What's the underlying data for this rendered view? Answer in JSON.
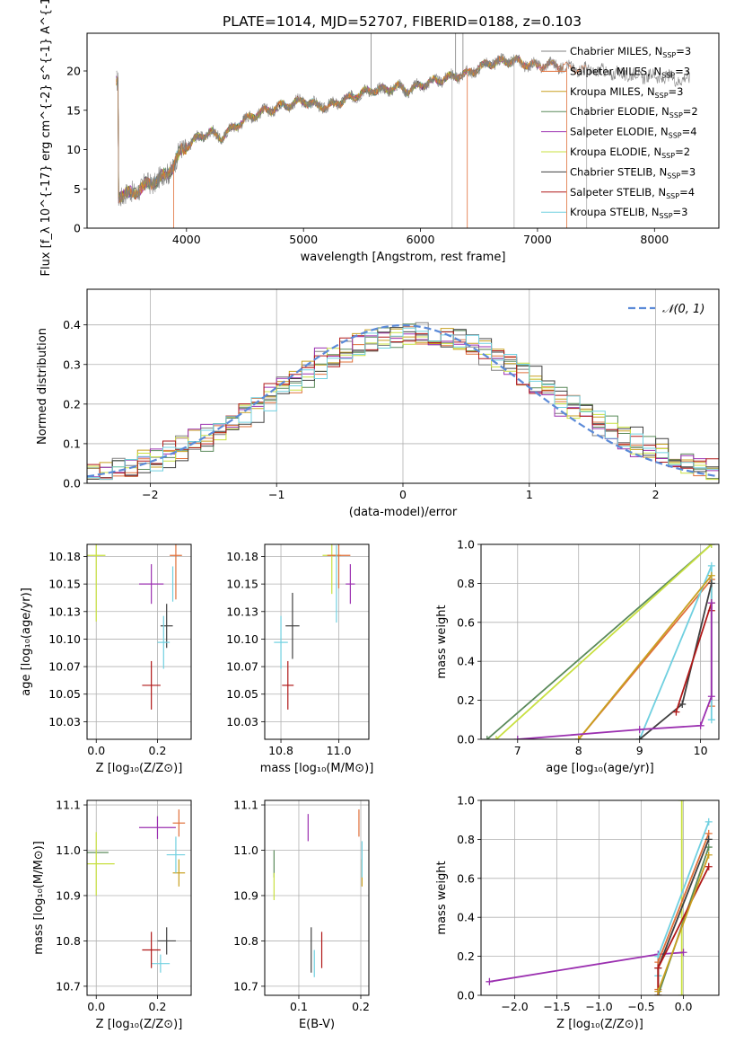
{
  "title": "PLATE=1014, MJD=52707, FIBERID=0188, z=0.103",
  "series_styles": [
    {
      "name": "Chabrier MILES",
      "nssp": "3",
      "color": "#808080"
    },
    {
      "name": "Salpeter MILES",
      "nssp": "3",
      "color": "#e0703a"
    },
    {
      "name": "Kroupa MILES",
      "nssp": "3",
      "color": "#c8a020"
    },
    {
      "name": "Chabrier ELODIE",
      "nssp": "2",
      "color": "#5a8a5a"
    },
    {
      "name": "Salpeter ELODIE",
      "nssp": "4",
      "color": "#9b30b0"
    },
    {
      "name": "Kroupa ELODIE",
      "nssp": "2",
      "color": "#c8e040"
    },
    {
      "name": "Chabrier STELIB",
      "nssp": "3",
      "color": "#404040"
    },
    {
      "name": "Salpeter STELIB",
      "nssp": "4",
      "color": "#b01818"
    },
    {
      "name": "Kroupa STELIB",
      "nssp": "3",
      "color": "#70d0e0"
    }
  ],
  "chart_data": [
    {
      "id": "spectrum",
      "type": "line",
      "xlabel": "wavelength [Angstrom, rest frame]",
      "ylabel": "Flux [f_λ 10^{-17} erg cm^{-2} s^{-1} A^{-1}]",
      "xlim": [
        3150,
        8550
      ],
      "ylim": [
        0,
        24.8
      ],
      "xticks": [
        4000,
        5000,
        6000,
        7000,
        8000
      ],
      "yticks": [
        0,
        5,
        10,
        15,
        20
      ],
      "legend": "upper right",
      "grid": false,
      "data_x_range": [
        3400,
        8300
      ],
      "continuum": [
        [
          3420,
          4.2
        ],
        [
          3500,
          4.3
        ],
        [
          3600,
          5.0
        ],
        [
          3700,
          5.8
        ],
        [
          3800,
          6.5
        ],
        [
          3850,
          7.2
        ],
        [
          3900,
          8.3
        ],
        [
          3950,
          9.8
        ],
        [
          4000,
          10.5
        ],
        [
          4100,
          11.5
        ],
        [
          4200,
          12.2
        ],
        [
          4300,
          11.5
        ],
        [
          4400,
          12.8
        ],
        [
          4500,
          13.8
        ],
        [
          4600,
          14.5
        ],
        [
          4700,
          15.0
        ],
        [
          4800,
          15.5
        ],
        [
          4900,
          15.8
        ],
        [
          5000,
          16.2
        ],
        [
          5100,
          15.7
        ],
        [
          5200,
          15.4
        ],
        [
          5300,
          16.0
        ],
        [
          5400,
          16.6
        ],
        [
          5500,
          17.2
        ],
        [
          5600,
          17.6
        ],
        [
          5700,
          17.6
        ],
        [
          5800,
          18.0
        ],
        [
          5900,
          17.5
        ],
        [
          6000,
          18.2
        ],
        [
          6100,
          18.6
        ],
        [
          6200,
          19.0
        ],
        [
          6300,
          19.4
        ],
        [
          6400,
          19.6
        ],
        [
          6500,
          20.4
        ],
        [
          6600,
          21.0
        ],
        [
          6700,
          21.2
        ],
        [
          6800,
          21.3
        ],
        [
          6900,
          20.9
        ],
        [
          7000,
          20.6
        ],
        [
          7100,
          20.9
        ],
        [
          7200,
          20.6
        ],
        [
          7300,
          20.4
        ],
        [
          7400,
          20.2
        ],
        [
          7500,
          20.0
        ],
        [
          7600,
          19.8
        ],
        [
          7700,
          19.6
        ],
        [
          7800,
          19.5
        ],
        [
          7900,
          19.4
        ],
        [
          8000,
          19.3
        ],
        [
          8100,
          19.1
        ],
        [
          8200,
          19.0
        ],
        [
          8300,
          18.9
        ]
      ],
      "spikes_up": [
        5577,
        6300,
        6363
      ],
      "spikes_down": [
        3890,
        6270,
        6400,
        6800,
        7250,
        7420
      ],
      "series_xmax": [
        8300,
        7420,
        7220,
        6800,
        7200,
        7000,
        6800,
        7200,
        7000
      ]
    },
    {
      "id": "residuals",
      "type": "step",
      "xlabel": "(data-model)/error",
      "ylabel": "Normed distribution",
      "xlim": [
        -2.5,
        2.5
      ],
      "ylim": [
        0,
        0.49
      ],
      "xticks": [
        -2,
        -1,
        0,
        1,
        2
      ],
      "yticks": [
        0.0,
        0.1,
        0.2,
        0.3,
        0.4
      ],
      "grid": true,
      "legend_label": "𝒩(0, 1)",
      "legend_color": "#5b8ad8",
      "bins": 50,
      "offsets": [
        0.05,
        0.12,
        0.08,
        0.15,
        0.02,
        0.1,
        0.18,
        0.06,
        0.13
      ]
    },
    {
      "id": "age-vs-Z",
      "type": "scatter",
      "xlabel": "Z [log₁₀(Z/Z⊙)]",
      "ylabel": "age  [log₁₀(age/yr)]",
      "xlim": [
        -0.03,
        0.31
      ],
      "ylim": [
        10.009,
        10.186
      ],
      "xticks": [
        0.0,
        0.2
      ],
      "yticks": [
        10.025,
        10.05,
        10.075,
        10.1,
        10.125,
        10.15,
        10.175
      ],
      "points": [
        {
          "x": 0.0,
          "y": 10.176,
          "xerr": 0.03,
          "yerr": 0.0,
          "c": 5
        },
        {
          "x": 0.0,
          "y": 10.176,
          "xerr": 0.0,
          "yerr": 0.06,
          "c": 5
        },
        {
          "x": 0.18,
          "y": 10.15,
          "xerr": 0.04,
          "yerr": 0.018,
          "c": 4
        },
        {
          "x": 0.26,
          "y": 10.176,
          "xerr": 0.02,
          "yerr": 0.04,
          "c": 1
        },
        {
          "x": 0.25,
          "y": 10.15,
          "xerr": 0.0,
          "yerr": 0.016,
          "c": 8
        },
        {
          "x": 0.23,
          "y": 10.112,
          "xerr": 0.02,
          "yerr": 0.02,
          "c": 6
        },
        {
          "x": 0.22,
          "y": 10.097,
          "xerr": 0.02,
          "yerr": 0.024,
          "c": 8
        },
        {
          "x": 0.18,
          "y": 10.058,
          "xerr": 0.03,
          "yerr": 0.022,
          "c": 7
        }
      ]
    },
    {
      "id": "age-vs-mass",
      "type": "scatter",
      "xlabel": "mass [log₁₀(M/M⊙)]",
      "ylabel": "",
      "xlim": [
        10.68,
        11.13
      ],
      "ylim": [
        10.009,
        10.186
      ],
      "xticks": [
        10.75,
        11.0
      ],
      "yticks": [
        10.025,
        10.05,
        10.075,
        10.1,
        10.125,
        10.15,
        10.175
      ],
      "points": [
        {
          "x": 10.97,
          "y": 10.176,
          "xerr": 0.04,
          "yerr": 0.035,
          "c": 5
        },
        {
          "x": 11.05,
          "y": 10.15,
          "xerr": 0.02,
          "yerr": 0.018,
          "c": 4
        },
        {
          "x": 11.0,
          "y": 10.176,
          "xerr": 0.05,
          "yerr": 0.03,
          "c": 1
        },
        {
          "x": 10.99,
          "y": 10.15,
          "xerr": 0.0,
          "yerr": 0.035,
          "c": 8
        },
        {
          "x": 10.8,
          "y": 10.112,
          "xerr": 0.03,
          "yerr": 0.03,
          "c": 6
        },
        {
          "x": 10.75,
          "y": 10.097,
          "xerr": 0.03,
          "yerr": 0.024,
          "c": 8
        },
        {
          "x": 10.78,
          "y": 10.058,
          "xerr": 0.025,
          "yerr": 0.022,
          "c": 7
        }
      ]
    },
    {
      "id": "massweight-vs-age",
      "type": "line",
      "xlabel": "age  [log₁₀(age/yr)]",
      "ylabel": "mass weight",
      "xlim": [
        6.4,
        10.3
      ],
      "ylim": [
        0.0,
        1.0
      ],
      "xticks": [
        7,
        8,
        9,
        10
      ],
      "yticks": [
        0.0,
        0.2,
        0.4,
        0.6,
        0.8,
        1.0
      ],
      "grid": true,
      "lines": [
        {
          "c": 3,
          "pts": [
            [
              6.5,
              0.0
            ],
            [
              10.18,
              1.0
            ]
          ]
        },
        {
          "c": 5,
          "pts": [
            [
              6.65,
              0.0
            ],
            [
              10.18,
              1.0
            ]
          ]
        },
        {
          "c": 1,
          "pts": [
            [
              8.0,
              0.0
            ],
            [
              10.18,
              0.82
            ],
            [
              10.18,
              0.17
            ]
          ]
        },
        {
          "c": 8,
          "pts": [
            [
              9.0,
              0.0
            ],
            [
              10.18,
              0.89
            ],
            [
              10.18,
              0.1
            ]
          ]
        },
        {
          "c": 2,
          "pts": [
            [
              8.0,
              0.0
            ],
            [
              10.18,
              0.84
            ]
          ]
        },
        {
          "c": 6,
          "pts": [
            [
              9.0,
              0.0
            ],
            [
              9.7,
              0.18
            ],
            [
              10.18,
              0.8
            ]
          ]
        },
        {
          "c": 7,
          "pts": [
            [
              9.6,
              0.14
            ],
            [
              10.18,
              0.7
            ],
            [
              10.18,
              0.66
            ]
          ]
        },
        {
          "c": 4,
          "pts": [
            [
              7.0,
              0.0
            ],
            [
              9.0,
              0.05
            ],
            [
              10.0,
              0.07
            ],
            [
              10.18,
              0.22
            ],
            [
              10.18,
              0.7
            ]
          ]
        }
      ]
    },
    {
      "id": "mass-vs-Z",
      "type": "scatter",
      "xlabel": "Z [log₁₀(Z/Z⊙)]",
      "ylabel": "mass [log₁₀(M/M⊙)]",
      "xlim": [
        -0.03,
        0.31
      ],
      "ylim": [
        10.68,
        11.11
      ],
      "xticks": [
        0.0,
        0.2
      ],
      "yticks": [
        10.7,
        10.8,
        10.9,
        11.0,
        11.1
      ],
      "points": [
        {
          "x": 0.0,
          "y": 10.995,
          "xerr": 0.04,
          "yerr": 0.0,
          "c": 3
        },
        {
          "x": 0.0,
          "y": 10.97,
          "xerr": 0.06,
          "yerr": 0.07,
          "c": 5
        },
        {
          "x": 0.2,
          "y": 11.05,
          "xerr": 0.06,
          "yerr": 0.025,
          "c": 4
        },
        {
          "x": 0.27,
          "y": 11.06,
          "xerr": 0.02,
          "yerr": 0.03,
          "c": 1
        },
        {
          "x": 0.27,
          "y": 10.95,
          "xerr": 0.02,
          "yerr": 0.03,
          "c": 2
        },
        {
          "x": 0.26,
          "y": 10.99,
          "xerr": 0.03,
          "yerr": 0.04,
          "c": 8
        },
        {
          "x": 0.23,
          "y": 10.8,
          "xerr": 0.03,
          "yerr": 0.03,
          "c": 6
        },
        {
          "x": 0.21,
          "y": 10.75,
          "xerr": 0.03,
          "yerr": 0.02,
          "c": 8
        },
        {
          "x": 0.18,
          "y": 10.78,
          "xerr": 0.03,
          "yerr": 0.04,
          "c": 7
        }
      ]
    },
    {
      "id": "mass-vs-ebv",
      "type": "scatter",
      "xlabel": "E(B-V)",
      "ylabel": "",
      "xlim": [
        0.045,
        0.213
      ],
      "ylim": [
        10.68,
        11.11
      ],
      "xticks": [
        0.1,
        0.2
      ],
      "yticks": [
        10.7,
        10.8,
        10.9,
        11.0,
        11.1
      ],
      "points": [
        {
          "x": 0.06,
          "y": 10.97,
          "xerr": 0.0,
          "yerr": 0.03,
          "c": 3
        },
        {
          "x": 0.06,
          "y": 10.92,
          "xerr": 0.0,
          "yerr": 0.03,
          "c": 5
        },
        {
          "x": 0.115,
          "y": 11.05,
          "xerr": 0.0,
          "yerr": 0.03,
          "c": 4
        },
        {
          "x": 0.197,
          "y": 11.06,
          "xerr": 0.0,
          "yerr": 0.03,
          "c": 1
        },
        {
          "x": 0.202,
          "y": 10.95,
          "xerr": 0.0,
          "yerr": 0.03,
          "c": 2
        },
        {
          "x": 0.202,
          "y": 10.98,
          "xerr": 0.0,
          "yerr": 0.04,
          "c": 8
        },
        {
          "x": 0.12,
          "y": 10.78,
          "xerr": 0.0,
          "yerr": 0.05,
          "c": 6
        },
        {
          "x": 0.125,
          "y": 10.75,
          "xerr": 0.0,
          "yerr": 0.03,
          "c": 8
        },
        {
          "x": 0.137,
          "y": 10.78,
          "xerr": 0.0,
          "yerr": 0.04,
          "c": 7
        }
      ]
    },
    {
      "id": "massweight-vs-Z",
      "type": "line",
      "xlabel": "Z [log₁₀(Z/Z⊙)]",
      "ylabel": "mass weight",
      "xlim": [
        -2.4,
        0.42
      ],
      "ylim": [
        0.0,
        1.0
      ],
      "xticks": [
        -2.0,
        -1.5,
        -1.0,
        -0.5,
        0.0
      ],
      "yticks": [
        0.0,
        0.2,
        0.4,
        0.6,
        0.8,
        1.0
      ],
      "grid": true,
      "lines": [
        {
          "c": 5,
          "pts": [
            [
              -0.02,
              0.0
            ],
            [
              -0.02,
              1.0
            ]
          ]
        },
        {
          "c": 4,
          "pts": [
            [
              -2.3,
              0.07
            ],
            [
              -0.3,
              0.21
            ],
            [
              0.0,
              0.22
            ]
          ]
        },
        {
          "c": 8,
          "pts": [
            [
              -0.3,
              0.1
            ],
            [
              -0.3,
              0.2
            ],
            [
              0.3,
              0.89
            ]
          ]
        },
        {
          "c": 1,
          "pts": [
            [
              -0.3,
              0.03
            ],
            [
              -0.3,
              0.17
            ],
            [
              0.3,
              0.83
            ]
          ]
        },
        {
          "c": 3,
          "pts": [
            [
              -0.3,
              0.0
            ],
            [
              0.3,
              0.76
            ]
          ]
        },
        {
          "c": 6,
          "pts": [
            [
              -0.3,
              0.0
            ],
            [
              -0.3,
              0.14
            ],
            [
              0.3,
              0.8
            ]
          ]
        },
        {
          "c": 7,
          "pts": [
            [
              -0.3,
              0.0
            ],
            [
              -0.3,
              0.14
            ],
            [
              0.3,
              0.66
            ]
          ]
        },
        {
          "c": 2,
          "pts": [
            [
              -0.3,
              0.02
            ],
            [
              0.3,
              0.72
            ]
          ]
        }
      ]
    }
  ]
}
